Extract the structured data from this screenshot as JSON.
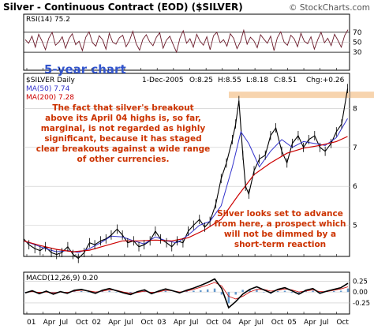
{
  "chart_data": {
    "type": "line",
    "title": "Silver - Continuous Contract (EOD) ($SILVER)",
    "watermark": "© StockCharts.com",
    "date_line": "1-Dec-2005",
    "ohlc": {
      "open": "O:8.25",
      "high": "H:8.55",
      "low": "L:8.18",
      "close": "C:8.51",
      "change": "Chg:+0.26"
    },
    "x_ticks": [
      "01",
      "Apr",
      "Jul",
      "Oct",
      "02",
      "Apr",
      "Jul",
      "Oct",
      "03",
      "Apr",
      "Jul",
      "Oct",
      "04",
      "Apr",
      "Jul",
      "Oct",
      "05",
      "Apr",
      "Jul",
      "Oct"
    ],
    "x_start": 2001.0,
    "x_end": 2005.95,
    "rsi": {
      "label": "RSI(14) 75.2",
      "ylim": [
        0,
        100
      ],
      "ticks": [
        70,
        50,
        30
      ],
      "tick_labels": [
        "70",
        "50",
        "30"
      ],
      "annotation": "5-year chart",
      "values": [
        55,
        48,
        62,
        40,
        66,
        52,
        35,
        58,
        70,
        44,
        50,
        61,
        38,
        57,
        67,
        45,
        52,
        33,
        60,
        71,
        49,
        42,
        63,
        55,
        36,
        68,
        50,
        46,
        59,
        64,
        41,
        53,
        72,
        47,
        34,
        56,
        65,
        51,
        43,
        60,
        69,
        38,
        54,
        62,
        45,
        30,
        58,
        73,
        48,
        57,
        40,
        66,
        52,
        44,
        61,
        35,
        63,
        70,
        49,
        55,
        42,
        67,
        58,
        37,
        51,
        74,
        46,
        60,
        53,
        39,
        65,
        56,
        48,
        62,
        33,
        59,
        71,
        50,
        44,
        64,
        57,
        41,
        68,
        52,
        47,
        61,
        36,
        55,
        70,
        49,
        58,
        43,
        66,
        54,
        40,
        63,
        75.2
      ]
    },
    "price": {
      "legend": [
        "$SILVER Daily",
        "MA(50) 7.74",
        "MA(200) 7.28"
      ],
      "ylim": [
        4.2,
        8.9
      ],
      "ticks": [
        8,
        7,
        6,
        5
      ],
      "tick_labels": [
        "8",
        "7",
        "6",
        "5"
      ],
      "resistance": 8.35,
      "series": [
        {
          "name": "$SILVER Daily",
          "x": [
            2001.0,
            2001.08,
            2001.17,
            2001.25,
            2001.33,
            2001.42,
            2001.5,
            2001.58,
            2001.67,
            2001.75,
            2001.83,
            2001.92,
            2002.0,
            2002.08,
            2002.17,
            2002.25,
            2002.33,
            2002.42,
            2002.5,
            2002.58,
            2002.67,
            2002.75,
            2002.83,
            2002.92,
            2003.0,
            2003.08,
            2003.17,
            2003.25,
            2003.33,
            2003.42,
            2003.5,
            2003.58,
            2003.67,
            2003.75,
            2003.83,
            2003.92,
            2004.0,
            2004.08,
            2004.17,
            2004.22,
            2004.27,
            2004.33,
            2004.37,
            2004.42,
            2004.5,
            2004.58,
            2004.67,
            2004.75,
            2004.83,
            2004.92,
            2005.0,
            2005.08,
            2005.17,
            2005.25,
            2005.33,
            2005.42,
            2005.5,
            2005.58,
            2005.67,
            2005.75,
            2005.83,
            2005.92
          ],
          "values": [
            4.65,
            4.5,
            4.4,
            4.35,
            4.45,
            4.3,
            4.25,
            4.3,
            4.45,
            4.25,
            4.15,
            4.3,
            4.55,
            4.5,
            4.6,
            4.65,
            4.75,
            4.9,
            4.75,
            4.55,
            4.6,
            4.45,
            4.5,
            4.6,
            4.85,
            4.65,
            4.55,
            4.45,
            4.6,
            4.55,
            4.85,
            5.0,
            5.15,
            4.95,
            5.1,
            5.55,
            6.2,
            6.6,
            7.2,
            7.6,
            8.2,
            6.8,
            6.0,
            5.8,
            6.4,
            6.7,
            6.8,
            7.3,
            7.5,
            6.9,
            6.6,
            7.1,
            7.3,
            7.0,
            7.2,
            7.3,
            7.0,
            6.9,
            7.1,
            7.4,
            7.6,
            8.51
          ]
        },
        {
          "name": "MA(50) 7.74",
          "x": [
            2001.0,
            2001.17,
            2001.33,
            2001.5,
            2001.67,
            2001.83,
            2002.0,
            2002.17,
            2002.33,
            2002.5,
            2002.67,
            2002.83,
            2003.0,
            2003.17,
            2003.33,
            2003.5,
            2003.67,
            2003.83,
            2004.0,
            2004.17,
            2004.3,
            2004.42,
            2004.58,
            2004.75,
            2004.92,
            2005.08,
            2005.25,
            2005.42,
            2005.58,
            2005.75,
            2005.92
          ],
          "values": [
            4.6,
            4.5,
            4.4,
            4.32,
            4.35,
            4.3,
            4.4,
            4.55,
            4.72,
            4.7,
            4.6,
            4.52,
            4.7,
            4.6,
            4.55,
            4.75,
            5.0,
            5.1,
            5.5,
            6.5,
            7.4,
            7.1,
            6.5,
            6.9,
            7.2,
            7.0,
            7.15,
            7.1,
            7.05,
            7.25,
            7.74
          ]
        },
        {
          "name": "MA(200) 7.28",
          "x": [
            2001.0,
            2001.25,
            2001.5,
            2001.75,
            2002.0,
            2002.25,
            2002.5,
            2002.75,
            2003.0,
            2003.25,
            2003.5,
            2003.75,
            2004.0,
            2004.25,
            2004.5,
            2004.75,
            2005.0,
            2005.25,
            2005.5,
            2005.75,
            2005.92
          ],
          "values": [
            4.6,
            4.48,
            4.38,
            4.32,
            4.36,
            4.48,
            4.6,
            4.6,
            4.62,
            4.6,
            4.68,
            4.88,
            5.15,
            5.75,
            6.3,
            6.6,
            6.85,
            6.98,
            7.05,
            7.15,
            7.28
          ]
        }
      ],
      "annotations": [
        "The fact that silver's breakout above its April 04 highs is, so far, marginal, is not regarded as highly significant, because it has staged clear breakouts against a wide range of other currencies.",
        "Silver looks set to advance from here, a prospect which will not be dimmed by a short-term reaction"
      ]
    },
    "macd": {
      "label": "MACD(12,26,9) 0.20",
      "ylim": [
        -0.45,
        0.4
      ],
      "ticks": [
        0.25,
        0,
        -0.25
      ],
      "tick_labels": [
        "0.25",
        "0.00",
        "-0.25"
      ],
      "values": [
        -0.02,
        0.03,
        -0.04,
        0.02,
        -0.05,
        0.01,
        -0.03,
        0.04,
        0.06,
        0.02,
        -0.03,
        0.04,
        0.08,
        0.03,
        -0.02,
        -0.06,
        0.01,
        0.05,
        -0.04,
        0.02,
        0.07,
        0.03,
        -0.02,
        0.04,
        0.09,
        0.15,
        0.22,
        0.3,
        0.08,
        -0.36,
        -0.22,
        -0.05,
        0.06,
        0.12,
        0.05,
        -0.02,
        0.06,
        0.1,
        0.03,
        -0.05,
        0.04,
        0.08,
        -0.03,
        0.02,
        0.06,
        0.1,
        0.2
      ],
      "signal": [
        -0.01,
        0.01,
        -0.01,
        0.0,
        -0.02,
        0.0,
        -0.01,
        0.02,
        0.04,
        0.03,
        0.0,
        0.02,
        0.05,
        0.04,
        0.0,
        -0.03,
        -0.01,
        0.02,
        -0.01,
        0.0,
        0.04,
        0.03,
        0.0,
        0.02,
        0.06,
        0.11,
        0.16,
        0.22,
        0.14,
        -0.1,
        -0.16,
        -0.1,
        0.0,
        0.06,
        0.06,
        0.02,
        0.04,
        0.07,
        0.05,
        0.0,
        0.02,
        0.05,
        0.01,
        0.01,
        0.04,
        0.07,
        0.12
      ]
    }
  },
  "colors": {
    "border": "#000000",
    "price_bars": "#000000",
    "ma50": "#3333cc",
    "ma200": "#cc0000",
    "rsi_line": "#6b1a2a",
    "annotation_text": "#cc3300",
    "five_year_text": "#3355cc",
    "resistance_band": "#f5c99a",
    "macd_line": "#000000",
    "macd_hist": "#6699cc",
    "grid": "#c8c8c8",
    "title_bg": "#ffffff"
  }
}
